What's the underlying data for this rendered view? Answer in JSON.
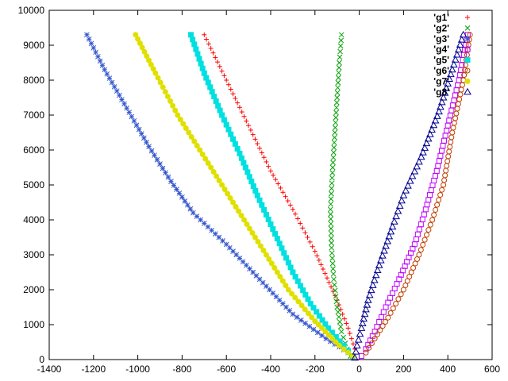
{
  "chart_data": {
    "type": "scatter",
    "title": "",
    "xlabel": "",
    "ylabel": "",
    "xlim": [
      -1400,
      600
    ],
    "ylim": [
      0,
      10000
    ],
    "xticks": [
      -1400,
      -1200,
      -1000,
      -800,
      -600,
      -400,
      -200,
      0,
      200,
      400,
      600
    ],
    "yticks": [
      0,
      1000,
      2000,
      3000,
      4000,
      5000,
      6000,
      7000,
      8000,
      9000,
      10000
    ],
    "grid": false,
    "legend_position": "top-right",
    "series": [
      {
        "name": "'g1'",
        "color": "#ff0000",
        "marker": "plus",
        "points": [
          [
            -700,
            9300
          ],
          [
            -600,
            8000
          ],
          [
            -500,
            6700
          ],
          [
            -400,
            5400
          ],
          [
            -300,
            4300
          ],
          [
            -200,
            3100
          ],
          [
            -100,
            1700
          ],
          [
            -50,
            900
          ],
          [
            -20,
            300
          ]
        ]
      },
      {
        "name": "'g2'",
        "color": "#00a000",
        "marker": "cross",
        "points": [
          [
            -80,
            9300
          ],
          [
            -90,
            8500
          ],
          [
            -100,
            7500
          ],
          [
            -110,
            6500
          ],
          [
            -120,
            5500
          ],
          [
            -130,
            4300
          ],
          [
            -125,
            3200
          ],
          [
            -115,
            2300
          ],
          [
            -100,
            1500
          ],
          [
            -80,
            800
          ],
          [
            -55,
            300
          ],
          [
            -40,
            100
          ]
        ]
      },
      {
        "name": "'g3'",
        "color": "#3355cc",
        "marker": "star",
        "points": [
          [
            -1230,
            9300
          ],
          [
            -1150,
            8300
          ],
          [
            -1050,
            7200
          ],
          [
            -950,
            6100
          ],
          [
            -850,
            5100
          ],
          [
            -750,
            4200
          ],
          [
            -600,
            3300
          ],
          [
            -450,
            2300
          ],
          [
            -300,
            1300
          ],
          [
            -150,
            600
          ],
          [
            -50,
            200
          ]
        ]
      },
      {
        "name": "'g4'",
        "color": "#c000ff",
        "marker": "square",
        "points": [
          [
            490,
            9300
          ],
          [
            450,
            8000
          ],
          [
            400,
            6700
          ],
          [
            350,
            5400
          ],
          [
            300,
            4300
          ],
          [
            250,
            3300
          ],
          [
            180,
            2300
          ],
          [
            120,
            1500
          ],
          [
            70,
            800
          ],
          [
            30,
            300
          ],
          [
            10,
            100
          ]
        ]
      },
      {
        "name": "'g5'",
        "color": "#00e0e0",
        "marker": "filled-square",
        "points": [
          [
            -760,
            9300
          ],
          [
            -700,
            8200
          ],
          [
            -620,
            7000
          ],
          [
            -540,
            5900
          ],
          [
            -460,
            4700
          ],
          [
            -380,
            3600
          ],
          [
            -300,
            2500
          ],
          [
            -220,
            1600
          ],
          [
            -140,
            900
          ],
          [
            -70,
            400
          ],
          [
            -30,
            100
          ]
        ]
      },
      {
        "name": "'g6'",
        "color": "#c04000",
        "marker": "circle",
        "points": [
          [
            500,
            9300
          ],
          [
            470,
            8000
          ],
          [
            420,
            6500
          ],
          [
            380,
            5000
          ],
          [
            330,
            4000
          ],
          [
            270,
            3000
          ],
          [
            200,
            2000
          ],
          [
            130,
            1200
          ],
          [
            70,
            600
          ],
          [
            30,
            200
          ]
        ]
      },
      {
        "name": "'g7'",
        "color": "#e0e000",
        "marker": "filled-circle",
        "points": [
          [
            -1010,
            9300
          ],
          [
            -920,
            8200
          ],
          [
            -820,
            7000
          ],
          [
            -720,
            6000
          ],
          [
            -620,
            5000
          ],
          [
            -520,
            4000
          ],
          [
            -420,
            3000
          ],
          [
            -320,
            2000
          ],
          [
            -200,
            1100
          ],
          [
            -90,
            400
          ],
          [
            -30,
            100
          ]
        ]
      },
      {
        "name": "'g8'",
        "color": "#000090",
        "marker": "triangle",
        "points": [
          [
            470,
            9300
          ],
          [
            420,
            8300
          ],
          [
            360,
            7100
          ],
          [
            280,
            5800
          ],
          [
            200,
            4700
          ],
          [
            150,
            3800
          ],
          [
            90,
            2700
          ],
          [
            40,
            1700
          ],
          [
            10,
            900
          ],
          [
            -10,
            400
          ],
          [
            -20,
            50
          ]
        ]
      }
    ]
  }
}
